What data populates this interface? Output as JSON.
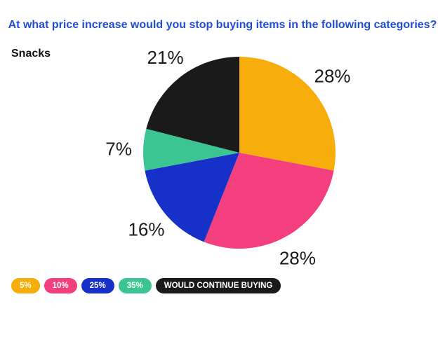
{
  "title": "At what price increase would you stop buying items in the following categories?",
  "subtitle": "Snacks",
  "chart_data": {
    "type": "pie",
    "categories": [
      "5%",
      "10%",
      "25%",
      "35%",
      "WOULD CONTINUE BUYING"
    ],
    "values": [
      28,
      28,
      16,
      7,
      21
    ],
    "data_labels": [
      "28%",
      "28%",
      "16%",
      "7%",
      "21%"
    ],
    "colors": [
      "#f7ad0b",
      "#f43f7e",
      "#1730c8",
      "#3cc592",
      "#1a1a1a"
    ],
    "legend_position": "bottom-left"
  }
}
